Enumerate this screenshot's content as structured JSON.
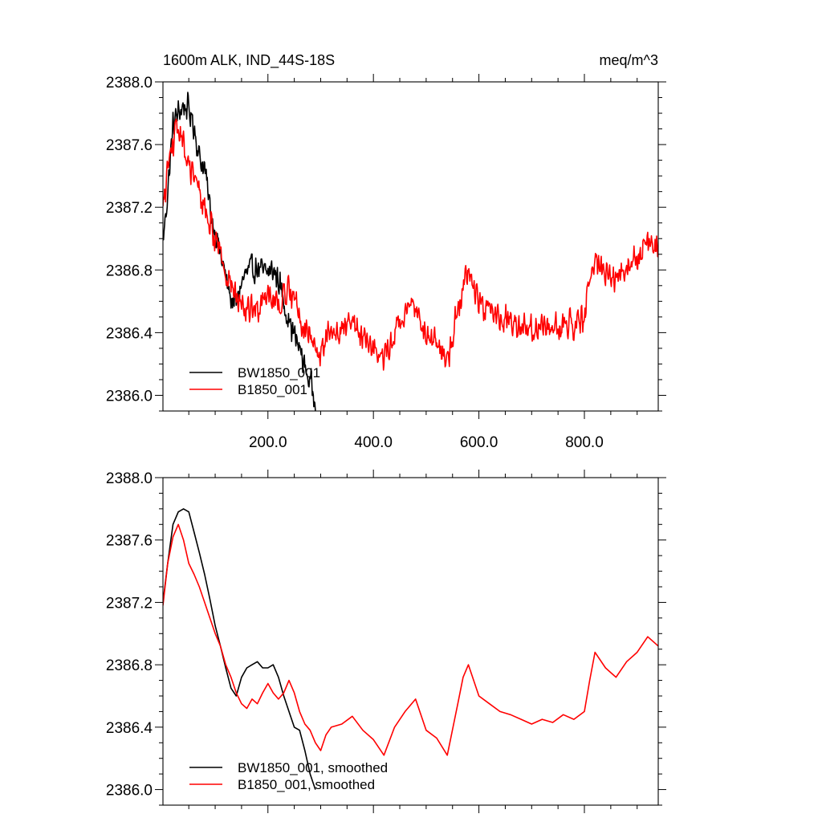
{
  "chart_data": [
    {
      "type": "line",
      "title_left": "1600m ALK, IND_44S-18S",
      "title_right": "meq/m^3",
      "xlabel": "",
      "ylabel": "",
      "xlim": [
        1,
        940
      ],
      "ylim": [
        2385.9,
        2388.0
      ],
      "xticks": [
        200,
        400,
        600,
        800
      ],
      "xtick_labels": [
        "200.0",
        "400.0",
        "600.0",
        "800.0"
      ],
      "yticks": [
        2386.0,
        2386.4,
        2386.8,
        2387.2,
        2387.6,
        2388.0
      ],
      "ytick_labels": [
        "2386.0",
        "2386.4",
        "2386.8",
        "2387.2",
        "2387.6",
        "2388.0"
      ],
      "grid": false,
      "legend_position": "bottom-left",
      "noise": true,
      "series": [
        {
          "name": "BW1850_001",
          "color": "#000000",
          "x": [
            1,
            10,
            20,
            30,
            40,
            50,
            60,
            70,
            80,
            90,
            100,
            110,
            120,
            130,
            140,
            150,
            160,
            170,
            180,
            190,
            200,
            210,
            220,
            230,
            240,
            250,
            260,
            270,
            280,
            290
          ],
          "y": [
            2386.97,
            2387.3,
            2387.72,
            2387.8,
            2387.85,
            2387.82,
            2387.72,
            2387.52,
            2387.45,
            2387.2,
            2387.05,
            2386.9,
            2386.75,
            2386.62,
            2386.58,
            2386.72,
            2386.78,
            2386.8,
            2386.82,
            2386.78,
            2386.78,
            2386.8,
            2386.74,
            2386.6,
            2386.48,
            2386.38,
            2386.3,
            2386.18,
            2386.08,
            2386.0
          ]
        },
        {
          "name": "B1850_001",
          "color": "#ff0000",
          "x": [
            1,
            10,
            20,
            30,
            40,
            50,
            60,
            70,
            80,
            90,
            100,
            110,
            120,
            130,
            140,
            150,
            160,
            170,
            180,
            190,
            200,
            210,
            220,
            230,
            240,
            250,
            260,
            270,
            280,
            290,
            300,
            310,
            320,
            340,
            360,
            380,
            400,
            420,
            440,
            460,
            480,
            500,
            520,
            540,
            560,
            570,
            580,
            600,
            620,
            640,
            660,
            680,
            700,
            720,
            740,
            760,
            780,
            800,
            810,
            820,
            840,
            860,
            880,
            900,
            920,
            940
          ],
          "y": [
            2387.18,
            2387.45,
            2387.62,
            2387.7,
            2387.6,
            2387.45,
            2387.38,
            2387.3,
            2387.2,
            2387.1,
            2387.0,
            2386.92,
            2386.8,
            2386.72,
            2386.62,
            2386.55,
            2386.52,
            2386.58,
            2386.55,
            2386.62,
            2386.68,
            2386.62,
            2386.58,
            2386.62,
            2386.7,
            2386.62,
            2386.5,
            2386.42,
            2386.38,
            2386.3,
            2386.25,
            2386.35,
            2386.4,
            2386.42,
            2386.47,
            2386.38,
            2386.32,
            2386.22,
            2386.4,
            2386.5,
            2386.58,
            2386.38,
            2386.33,
            2386.22,
            2386.55,
            2386.72,
            2386.8,
            2386.6,
            2386.55,
            2386.5,
            2386.48,
            2386.45,
            2386.42,
            2386.45,
            2386.43,
            2386.48,
            2386.45,
            2386.5,
            2386.7,
            2386.88,
            2386.78,
            2386.72,
            2386.82,
            2386.88,
            2386.98,
            2386.92
          ]
        }
      ]
    },
    {
      "type": "line",
      "xlim": [
        1,
        940
      ],
      "ylim": [
        2385.9,
        2388.0
      ],
      "xticks": [
        200,
        400,
        600,
        800
      ],
      "yticks": [
        2386.0,
        2386.4,
        2386.8,
        2387.2,
        2387.6,
        2388.0
      ],
      "ytick_labels": [
        "2386.0",
        "2386.4",
        "2386.8",
        "2387.2",
        "2387.6",
        "2388.0"
      ],
      "grid": false,
      "legend_position": "bottom-left",
      "noise": false,
      "series": [
        {
          "name": "BW1850_001, smoothed",
          "color": "#000000",
          "x": [
            1,
            10,
            20,
            30,
            40,
            50,
            60,
            70,
            80,
            90,
            100,
            110,
            120,
            130,
            140,
            150,
            160,
            170,
            180,
            190,
            200,
            210,
            220,
            230,
            240,
            250,
            260,
            270,
            280,
            290
          ],
          "y": [
            2387.2,
            2387.45,
            2387.7,
            2387.78,
            2387.8,
            2387.78,
            2387.65,
            2387.52,
            2387.38,
            2387.22,
            2387.05,
            2386.92,
            2386.78,
            2386.65,
            2386.6,
            2386.72,
            2386.78,
            2386.8,
            2386.82,
            2386.78,
            2386.78,
            2386.8,
            2386.72,
            2386.6,
            2386.5,
            2386.4,
            2386.38,
            2386.25,
            2386.1,
            2386.0
          ]
        },
        {
          "name": "B1850_001, smoothed",
          "color": "#ff0000",
          "x": [
            1,
            10,
            20,
            30,
            40,
            50,
            60,
            70,
            80,
            90,
            100,
            110,
            120,
            130,
            140,
            150,
            160,
            170,
            180,
            190,
            200,
            210,
            220,
            230,
            240,
            250,
            260,
            270,
            280,
            290,
            300,
            310,
            320,
            340,
            360,
            380,
            400,
            420,
            440,
            460,
            480,
            500,
            520,
            540,
            560,
            570,
            580,
            600,
            620,
            640,
            660,
            680,
            700,
            720,
            740,
            760,
            780,
            800,
            810,
            820,
            840,
            860,
            880,
            900,
            920,
            940
          ],
          "y": [
            2387.18,
            2387.45,
            2387.62,
            2387.7,
            2387.6,
            2387.45,
            2387.38,
            2387.3,
            2387.2,
            2387.1,
            2387.0,
            2386.92,
            2386.8,
            2386.72,
            2386.62,
            2386.55,
            2386.52,
            2386.58,
            2386.55,
            2386.62,
            2386.68,
            2386.62,
            2386.58,
            2386.62,
            2386.7,
            2386.62,
            2386.5,
            2386.42,
            2386.38,
            2386.3,
            2386.25,
            2386.35,
            2386.4,
            2386.42,
            2386.47,
            2386.38,
            2386.32,
            2386.22,
            2386.4,
            2386.5,
            2386.58,
            2386.38,
            2386.33,
            2386.22,
            2386.55,
            2386.72,
            2386.8,
            2386.6,
            2386.55,
            2386.5,
            2386.48,
            2386.45,
            2386.42,
            2386.45,
            2386.43,
            2386.48,
            2386.45,
            2386.5,
            2386.7,
            2386.88,
            2386.78,
            2386.72,
            2386.82,
            2386.88,
            2386.98,
            2386.92
          ]
        }
      ]
    }
  ]
}
